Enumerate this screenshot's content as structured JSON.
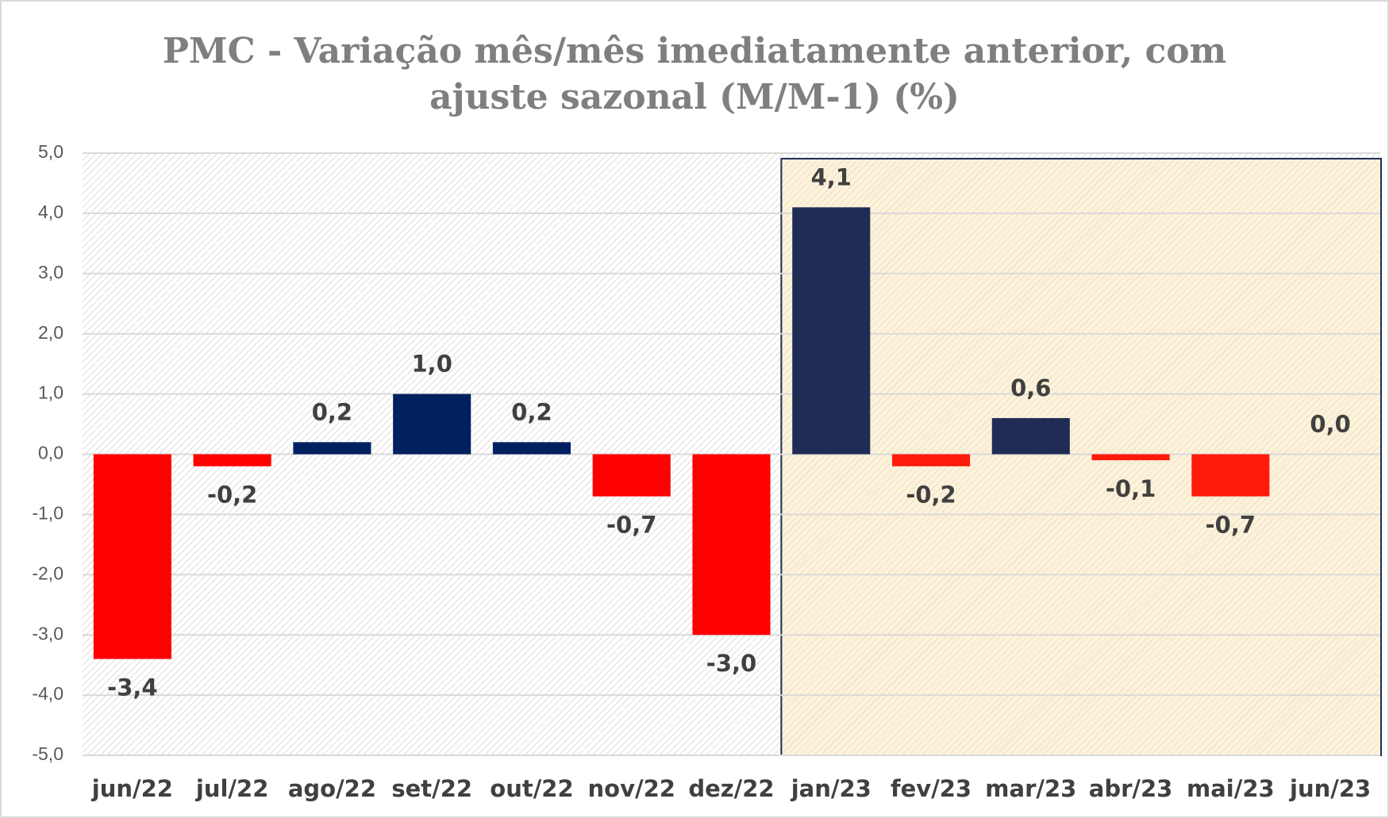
{
  "chart_data": {
    "type": "bar",
    "title": "PMC - Variação mês/mês imediatamente anterior, com ajuste sazonal (M/M-1) (%)",
    "categories": [
      "jun/22",
      "jul/22",
      "ago/22",
      "set/22",
      "out/22",
      "nov/22",
      "dez/22",
      "jan/23",
      "fev/23",
      "mar/23",
      "abr/23",
      "mai/23",
      "jun/23"
    ],
    "values": [
      -3.4,
      -0.2,
      0.2,
      1.0,
      0.2,
      -0.7,
      -3.0,
      4.1,
      -0.2,
      0.6,
      -0.1,
      -0.7,
      0.0
    ],
    "value_labels": [
      "-3,4",
      "-0,2",
      "0,2",
      "1,0",
      "0,2",
      "-0,7",
      "-3,0",
      "4,1",
      "-0,2",
      "0,6",
      "-0,1",
      "-0,7",
      "0,0"
    ],
    "colors": [
      "#ff0000",
      "#ff0000",
      "#002060",
      "#002060",
      "#002060",
      "#ff0000",
      "#ff0000",
      "#1f2d54",
      "#ff1a0a",
      "#1f2d54",
      "#ff1a0a",
      "#ff1a0a",
      "#1f2d54"
    ],
    "ylim": [
      -5,
      5
    ],
    "yticks": [
      {
        "value": -5,
        "label": "-5,0"
      },
      {
        "value": -4,
        "label": "-4,0"
      },
      {
        "value": -3,
        "label": "-3,0"
      },
      {
        "value": -2,
        "label": "-2,0"
      },
      {
        "value": -1,
        "label": "-1,0"
      },
      {
        "value": 0,
        "label": "0,0"
      },
      {
        "value": 1,
        "label": "1,0"
      },
      {
        "value": 2,
        "label": "2,0"
      },
      {
        "value": 3,
        "label": "3,0"
      },
      {
        "value": 4,
        "label": "4,0"
      },
      {
        "value": 5,
        "label": "5,0"
      }
    ],
    "grid": true
  }
}
